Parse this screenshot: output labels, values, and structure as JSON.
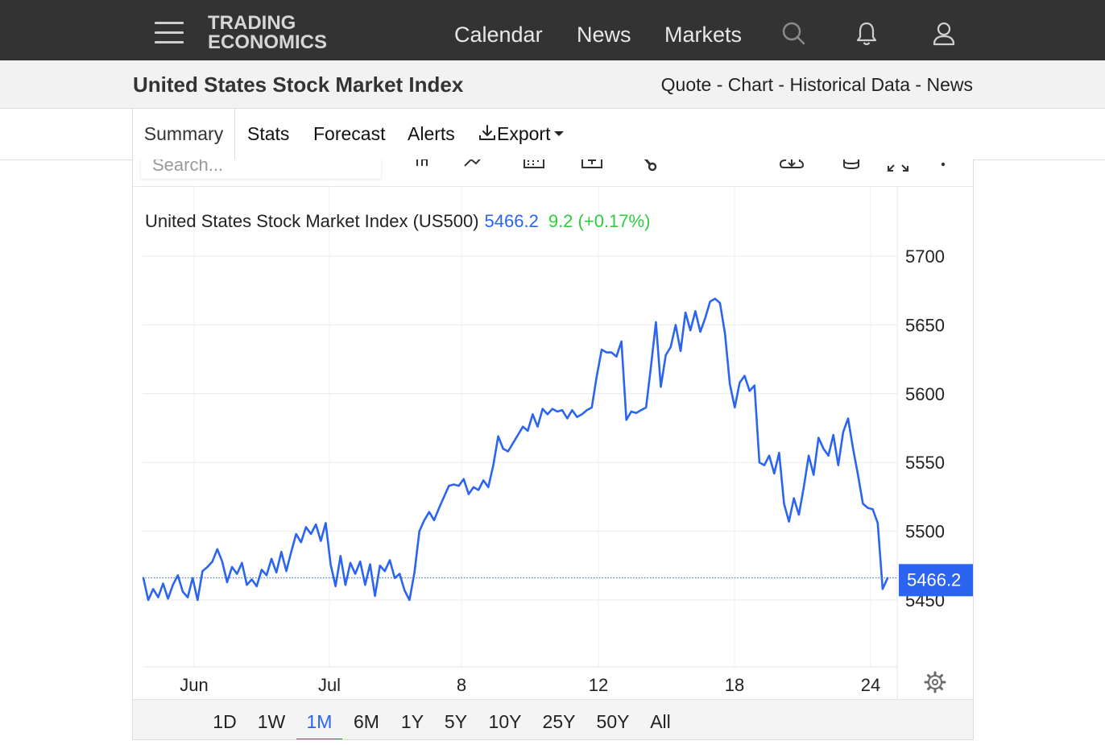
{
  "nav": {
    "logo_line1": "TRADING",
    "logo_line2": "ECONOMICS",
    "links": [
      "Calendar",
      "News",
      "Markets"
    ],
    "icons": [
      "menu-icon",
      "search-icon",
      "bell-icon",
      "user-icon"
    ]
  },
  "header": {
    "title": "United States Stock Market Index",
    "quick_links": [
      "Quote",
      "Chart",
      "Historical Data",
      "News"
    ],
    "separator": " - "
  },
  "tabs": {
    "items": [
      "Summary",
      "Stats",
      "Forecast",
      "Alerts",
      "Export"
    ],
    "active": "Summary"
  },
  "toolbar": {
    "search_placeholder": "Search...",
    "icons": [
      "candles-icon",
      "line-style-icon",
      "calendar-icon",
      "add-compare-icon",
      "wrench-icon",
      "download-icon",
      "database-icon",
      "fullscreen-icon",
      "more-icon"
    ]
  },
  "quote": {
    "name": "United States Stock Market Index (US500)",
    "last": "5466.2",
    "change": "9.2 (+0.17%)",
    "last_color": "#2a64f0",
    "change_color": "#2ecc40"
  },
  "ranges": {
    "items": [
      "1D",
      "1W",
      "1M",
      "6M",
      "1Y",
      "5Y",
      "10Y",
      "25Y",
      "50Y",
      "All"
    ],
    "active": "1M"
  },
  "colors": {
    "line": "#2a64f0",
    "topbar": "#333333",
    "price_tag": "#2a64f0"
  },
  "chart_data": {
    "type": "line",
    "title": "United States Stock Market Index (US500)",
    "xlabel": "",
    "ylabel": "",
    "x_ticks": [
      "Jun",
      "Jul",
      "8",
      "12",
      "18",
      "24"
    ],
    "y_ticks": [
      5450,
      5500,
      5550,
      5600,
      5650,
      5700
    ],
    "ylim": [
      5400,
      5740
    ],
    "last_value": 5466.2,
    "last_label": "5466.2",
    "grid": true,
    "y_axis_side": "right",
    "series": [
      {
        "values": [
          5466,
          5450,
          5458,
          5452,
          5462,
          5451,
          5461,
          5468,
          5456,
          5452,
          5466,
          5450,
          5471,
          5474,
          5478,
          5487,
          5478,
          5463,
          5474,
          5469,
          5477,
          5461,
          5465,
          5460,
          5472,
          5468,
          5480,
          5470,
          5485,
          5471,
          5485,
          5498,
          5492,
          5503,
          5498,
          5505,
          5493,
          5506,
          5476,
          5460,
          5482,
          5461,
          5477,
          5469,
          5478,
          5461,
          5476,
          5453,
          5475,
          5471,
          5479,
          5466,
          5469,
          5457,
          5450,
          5470,
          5500,
          5508,
          5514,
          5508,
          5517,
          5525,
          5533,
          5534,
          5533,
          5538,
          5527,
          5532,
          5530,
          5537,
          5532,
          5548,
          5569,
          5560,
          5558,
          5564,
          5570,
          5576,
          5573,
          5585,
          5576,
          5589,
          5585,
          5589,
          5587,
          5588,
          5582,
          5588,
          5583,
          5585,
          5588,
          5590,
          5613,
          5632,
          5630,
          5630,
          5627,
          5638,
          5581,
          5587,
          5586,
          5588,
          5590,
          5620,
          5652,
          5605,
          5628,
          5634,
          5650,
          5631,
          5659,
          5646,
          5660,
          5645,
          5655,
          5667,
          5669,
          5666,
          5644,
          5607,
          5590,
          5608,
          5613,
          5602,
          5606,
          5550,
          5548,
          5555,
          5542,
          5557,
          5520,
          5507,
          5524,
          5512,
          5532,
          5555,
          5541,
          5568,
          5560,
          5555,
          5570,
          5548,
          5572,
          5582,
          5560,
          5541,
          5520,
          5517,
          5516,
          5506,
          5458,
          5466
        ]
      }
    ]
  }
}
